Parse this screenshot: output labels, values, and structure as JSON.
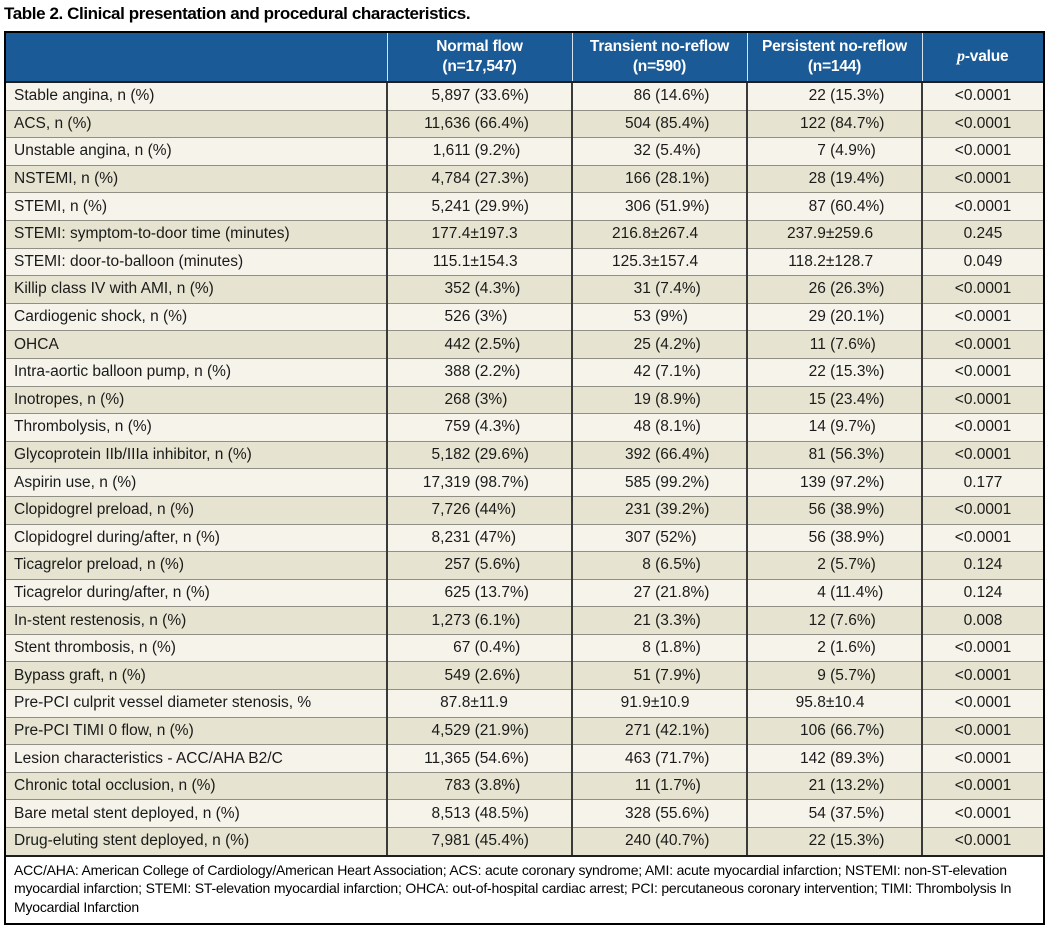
{
  "title": "Table 2. Clinical presentation and procedural characteristics.",
  "table": {
    "col_headers": [
      {
        "line1": "Normal flow",
        "line2": "(n=17,547)"
      },
      {
        "line1": "Transient no-reflow",
        "line2": "(n=590)"
      },
      {
        "line1": "Persistent no-reflow",
        "line2": "(n=144)"
      }
    ],
    "pvalue_header": {
      "italic": "p",
      "rest": "-value"
    },
    "rows": [
      {
        "label": "Stable angina, n (%)",
        "normal": "5,897 (33.6%)",
        "transient": "86 (14.6%)",
        "persistent": "22 (15.3%)",
        "p": "<0.0001"
      },
      {
        "label": "ACS, n (%)",
        "normal": "11,636 (66.4%)",
        "transient": "504 (85.4%)",
        "persistent": "122 (84.7%)",
        "p": "<0.0001"
      },
      {
        "label": "Unstable angina, n (%)",
        "normal": "1,611 (9.2%)",
        "transient": "32 (5.4%)",
        "persistent": "7 (4.9%)",
        "p": "<0.0001"
      },
      {
        "label": "NSTEMI, n (%)",
        "normal": "4,784 (27.3%)",
        "transient": "166 (28.1%)",
        "persistent": "28 (19.4%)",
        "p": "<0.0001"
      },
      {
        "label": "STEMI, n (%)",
        "normal": "5,241 (29.9%)",
        "transient": "306 (51.9%)",
        "persistent": "87 (60.4%)",
        "p": "<0.0001"
      },
      {
        "label": "STEMI: symptom-to-door time (minutes)",
        "normal": "177.4±197.3",
        "transient": "216.8±267.4",
        "persistent": "237.9±259.6",
        "p": "0.245"
      },
      {
        "label": "STEMI: door-to-balloon (minutes)",
        "normal": "115.1±154.3",
        "transient": "125.3±157.4",
        "persistent": "118.2±128.7",
        "p": "0.049"
      },
      {
        "label": "Killip class IV with AMI, n (%)",
        "normal": "352 (4.3%)",
        "transient": "31 (7.4%)",
        "persistent": "26 (26.3%)",
        "p": "<0.0001"
      },
      {
        "label": "Cardiogenic shock, n (%)",
        "normal": "526 (3%)",
        "transient": "53 (9%)",
        "persistent": "29 (20.1%)",
        "p": "<0.0001"
      },
      {
        "label": "OHCA",
        "normal": "442 (2.5%)",
        "transient": "25 (4.2%)",
        "persistent": "11 (7.6%)",
        "p": "<0.0001"
      },
      {
        "label": "Intra-aortic balloon pump, n (%)",
        "normal": "388 (2.2%)",
        "transient": "42 (7.1%)",
        "persistent": "22 (15.3%)",
        "p": "<0.0001"
      },
      {
        "label": "Inotropes, n (%)",
        "normal": "268 (3%)",
        "transient": "19 (8.9%)",
        "persistent": "15 (23.4%)",
        "p": "<0.0001"
      },
      {
        "label": "Thrombolysis, n (%)",
        "normal": "759 (4.3%)",
        "transient": "48 (8.1%)",
        "persistent": "14 (9.7%)",
        "p": "<0.0001"
      },
      {
        "label": "Glycoprotein IIb/IIIa inhibitor, n (%)",
        "normal": "5,182 (29.6%)",
        "transient": "392 (66.4%)",
        "persistent": "81 (56.3%)",
        "p": "<0.0001"
      },
      {
        "label": "Aspirin use, n (%)",
        "normal": "17,319 (98.7%)",
        "transient": "585 (99.2%)",
        "persistent": "139 (97.2%)",
        "p": "0.177"
      },
      {
        "label": "Clopidogrel preload, n (%)",
        "normal": "7,726 (44%)",
        "transient": "231 (39.2%)",
        "persistent": "56 (38.9%)",
        "p": "<0.0001"
      },
      {
        "label": "Clopidogrel during/after, n (%)",
        "normal": "8,231 (47%)",
        "transient": "307 (52%)",
        "persistent": "56 (38.9%)",
        "p": "<0.0001"
      },
      {
        "label": "Ticagrelor preload, n (%)",
        "normal": "257 (5.6%)",
        "transient": "8 (6.5%)",
        "persistent": "2 (5.7%)",
        "p": "0.124"
      },
      {
        "label": "Ticagrelor during/after, n (%)",
        "normal": "625 (13.7%)",
        "transient": "27 (21.8%)",
        "persistent": "4 (11.4%)",
        "p": "0.124"
      },
      {
        "label": "In-stent restenosis, n (%)",
        "normal": "1,273 (6.1%)",
        "transient": "21 (3.3%)",
        "persistent": "12 (7.6%)",
        "p": "0.008"
      },
      {
        "label": "Stent thrombosis, n (%)",
        "normal": "67 (0.4%)",
        "transient": "8 (1.8%)",
        "persistent": "2 (1.6%)",
        "p": "<0.0001"
      },
      {
        "label": "Bypass graft, n (%)",
        "normal": "549 (2.6%)",
        "transient": "51 (7.9%)",
        "persistent": "9 (5.7%)",
        "p": "<0.0001"
      },
      {
        "label": "Pre-PCI culprit vessel diameter stenosis, %",
        "normal": "87.8±11.9",
        "transient": "91.9±10.9",
        "persistent": "95.8±10.4",
        "p": "<0.0001"
      },
      {
        "label": "Pre-PCI TIMI 0 flow, n (%)",
        "normal": "4,529 (21.9%)",
        "transient": "271 (42.1%)",
        "persistent": "106 (66.7%)",
        "p": "<0.0001"
      },
      {
        "label": "Lesion characteristics - ACC/AHA B2/C",
        "normal": "11,365 (54.6%)",
        "transient": "463 (71.7%)",
        "persistent": "142 (89.3%)",
        "p": "<0.0001"
      },
      {
        "label": "Chronic total occlusion, n (%)",
        "normal": "783 (3.8%)",
        "transient": "11 (1.7%)",
        "persistent": "21 (13.2%)",
        "p": "<0.0001"
      },
      {
        "label": "Bare metal stent deployed, n (%)",
        "normal": "8,513 (48.5%)",
        "transient": "328 (55.6%)",
        "persistent": "54 (37.5%)",
        "p": "<0.0001"
      },
      {
        "label": "Drug-eluting stent deployed, n (%)",
        "normal": "7,981 (45.4%)",
        "transient": "240 (40.7%)",
        "persistent": "22 (15.3%)",
        "p": "<0.0001"
      }
    ]
  },
  "footnote": "ACC/AHA: American College of Cardiology/American Heart Association; ACS: acute coronary syndrome; AMI: acute myocardial infarction; NSTEMI: non-ST-elevation myocardial infarction; STEMI: ST-elevation myocardial infarction; OHCA: out-of-hospital cardiac arrest; PCI: percutaneous coronary intervention; TIMI: Thrombolysis In Myocardial Infarction",
  "colors": {
    "header_bg": "#1a5a96",
    "header_text": "#ffffff",
    "row_bg": "#f5f3ea",
    "row_alt_bg": "#e6e4d0",
    "row_divider": "#8f8f86",
    "column_divider": "#3a3a3a",
    "outer_border": "#000000"
  }
}
